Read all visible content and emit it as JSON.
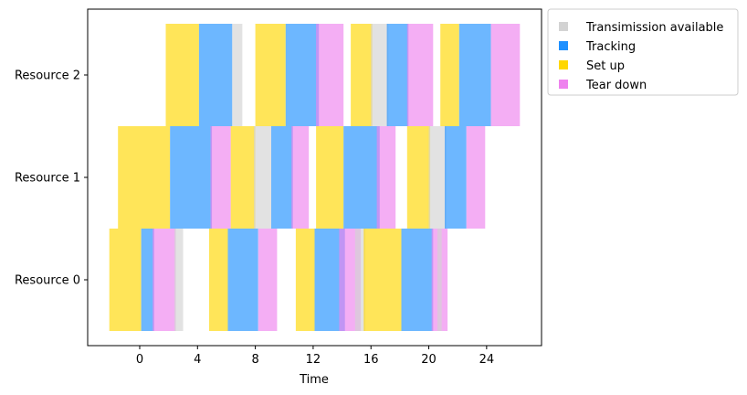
{
  "chart_data": {
    "type": "gantt",
    "xlabel": "Time",
    "x_ticks": [
      0,
      4,
      8,
      12,
      16,
      20,
      24
    ],
    "xlim": [
      -3.6,
      27.8
    ],
    "y_categories": [
      "Resource 0",
      "Resource 1",
      "Resource 2"
    ],
    "legend_position": "outside-top-right",
    "legend": [
      {
        "key": "transmission",
        "label": "Transimission available",
        "color": "#d3d3d3"
      },
      {
        "key": "tracking",
        "label": "Tracking",
        "color": "#1e90ff"
      },
      {
        "key": "setup",
        "label": "Set up",
        "color": "#ffd700"
      },
      {
        "key": "teardown",
        "label": "Tear down",
        "color": "#ee82ee"
      }
    ],
    "bars": [
      {
        "resource": 0,
        "kind": "setup",
        "start": -2.1,
        "end": 0.1
      },
      {
        "resource": 0,
        "kind": "tracking",
        "start": 0.1,
        "end": 1.0
      },
      {
        "resource": 0,
        "kind": "teardown",
        "start": 0.9,
        "end": 2.5
      },
      {
        "resource": 0,
        "kind": "transmission",
        "start": 2.4,
        "end": 3.0
      },
      {
        "resource": 0,
        "kind": "setup",
        "start": 4.8,
        "end": 6.1
      },
      {
        "resource": 0,
        "kind": "tracking",
        "start": 6.1,
        "end": 8.2
      },
      {
        "resource": 0,
        "kind": "teardown",
        "start": 8.2,
        "end": 9.5
      },
      {
        "resource": 0,
        "kind": "setup",
        "start": 10.8,
        "end": 12.1
      },
      {
        "resource": 0,
        "kind": "tracking",
        "start": 12.1,
        "end": 14.2
      },
      {
        "resource": 0,
        "kind": "teardown",
        "start": 13.8,
        "end": 15.3
      },
      {
        "resource": 0,
        "kind": "transmission",
        "start": 14.9,
        "end": 15.6
      },
      {
        "resource": 0,
        "kind": "setup",
        "start": 15.5,
        "end": 18.1
      },
      {
        "resource": 0,
        "kind": "tracking",
        "start": 18.1,
        "end": 20.3
      },
      {
        "resource": 0,
        "kind": "teardown",
        "start": 20.2,
        "end": 21.3
      },
      {
        "resource": 0,
        "kind": "transmission",
        "start": 20.6,
        "end": 20.9
      },
      {
        "resource": 1,
        "kind": "setup",
        "start": -1.5,
        "end": 2.1
      },
      {
        "resource": 1,
        "kind": "tracking",
        "start": 2.1,
        "end": 5.0
      },
      {
        "resource": 1,
        "kind": "teardown",
        "start": 4.9,
        "end": 6.3
      },
      {
        "resource": 1,
        "kind": "setup",
        "start": 6.3,
        "end": 8.0
      },
      {
        "resource": 1,
        "kind": "transmission",
        "start": 7.9,
        "end": 9.1
      },
      {
        "resource": 1,
        "kind": "tracking",
        "start": 9.1,
        "end": 10.6
      },
      {
        "resource": 1,
        "kind": "teardown",
        "start": 10.5,
        "end": 11.7
      },
      {
        "resource": 1,
        "kind": "setup",
        "start": 12.2,
        "end": 14.1
      },
      {
        "resource": 1,
        "kind": "tracking",
        "start": 14.1,
        "end": 16.6
      },
      {
        "resource": 1,
        "kind": "teardown",
        "start": 16.4,
        "end": 17.7
      },
      {
        "resource": 1,
        "kind": "setup",
        "start": 18.5,
        "end": 20.1
      },
      {
        "resource": 1,
        "kind": "transmission",
        "start": 20.0,
        "end": 21.2
      },
      {
        "resource": 1,
        "kind": "tracking",
        "start": 21.1,
        "end": 22.6
      },
      {
        "resource": 1,
        "kind": "teardown",
        "start": 22.6,
        "end": 23.9
      },
      {
        "resource": 2,
        "kind": "setup",
        "start": 1.8,
        "end": 4.1
      },
      {
        "resource": 2,
        "kind": "tracking",
        "start": 4.1,
        "end": 6.4
      },
      {
        "resource": 2,
        "kind": "transmission",
        "start": 6.4,
        "end": 7.1
      },
      {
        "resource": 2,
        "kind": "setup",
        "start": 8.0,
        "end": 10.1
      },
      {
        "resource": 2,
        "kind": "tracking",
        "start": 10.1,
        "end": 12.4
      },
      {
        "resource": 2,
        "kind": "teardown",
        "start": 12.2,
        "end": 14.1
      },
      {
        "resource": 2,
        "kind": "setup",
        "start": 14.6,
        "end": 16.1
      },
      {
        "resource": 2,
        "kind": "transmission",
        "start": 16.0,
        "end": 17.2
      },
      {
        "resource": 2,
        "kind": "tracking",
        "start": 17.1,
        "end": 18.6
      },
      {
        "resource": 2,
        "kind": "teardown",
        "start": 18.5,
        "end": 20.3
      },
      {
        "resource": 2,
        "kind": "setup",
        "start": 20.8,
        "end": 22.1
      },
      {
        "resource": 2,
        "kind": "tracking",
        "start": 22.1,
        "end": 24.3
      },
      {
        "resource": 2,
        "kind": "teardown",
        "start": 24.3,
        "end": 26.3
      }
    ]
  }
}
